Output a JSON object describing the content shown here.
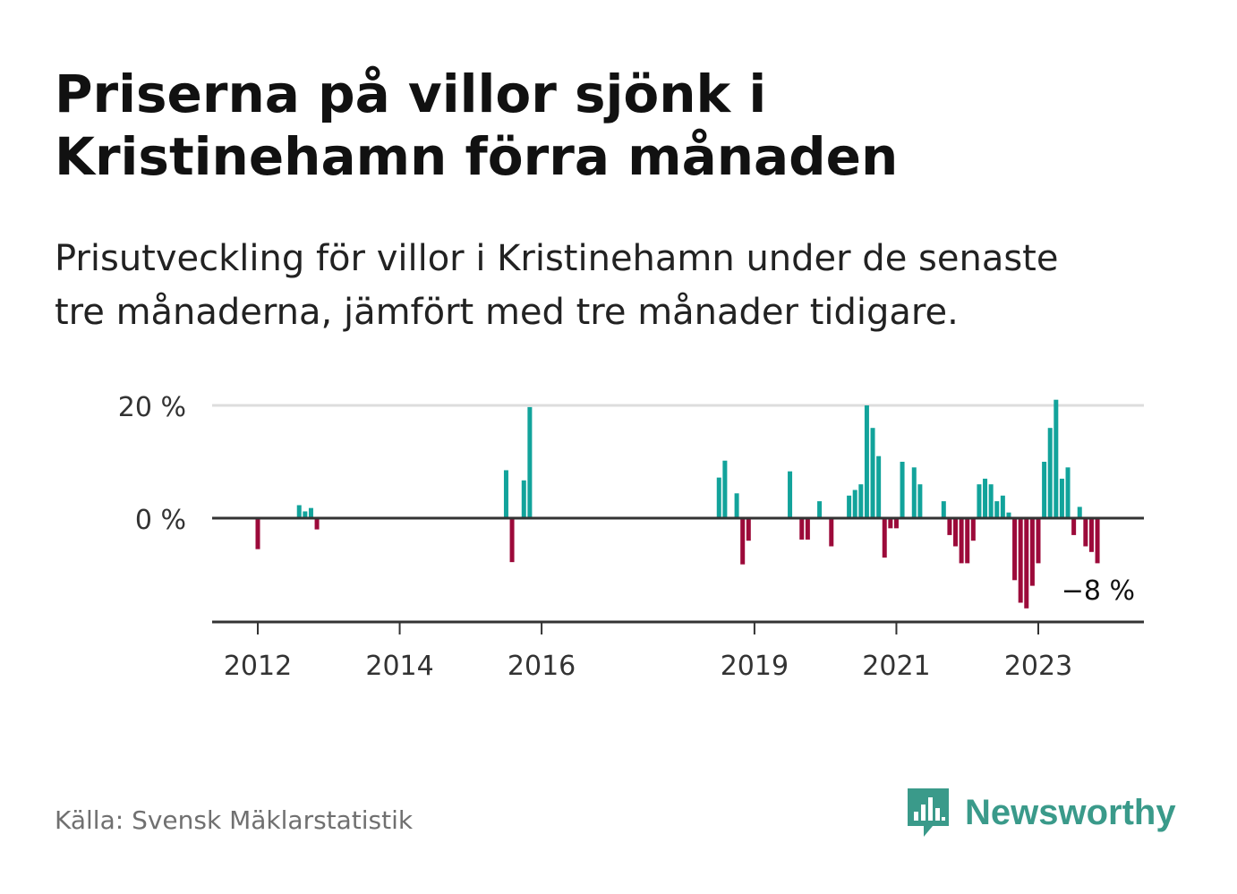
{
  "title_lines": [
    "Priserna på villor sjönk i",
    "Kristinehamn förra månaden"
  ],
  "subtitle_lines": [
    "Prisutveckling för villor i Kristinehamn under de senaste",
    "tre månaderna, jämfört med tre månader tidigare."
  ],
  "source": "Källa: Svensk Mäklarstatistik",
  "brand": {
    "name": "Newsworthy",
    "icon": "bar-chart-speech-bubble-icon",
    "color": "#3a9a8a"
  },
  "colors": {
    "positive": "#12a39b",
    "negative": "#9c0a3a",
    "axis": "#333333",
    "grid": "#dddddd"
  },
  "chart_data": {
    "type": "bar",
    "title": "Priserna på villor sjönk i Kristinehamn förra månaden",
    "ylim": [
      -18,
      21
    ],
    "y_ticks": [
      {
        "value": 0,
        "label": "0 %"
      },
      {
        "value": 20,
        "label": "20 %"
      }
    ],
    "x_ticks": [
      {
        "label": "2012",
        "month_index": 0
      },
      {
        "label": "2014",
        "month_index": 24
      },
      {
        "label": "2016",
        "month_index": 48
      },
      {
        "label": "2019",
        "month_index": 84
      },
      {
        "label": "2021",
        "month_index": 108
      },
      {
        "label": "2023",
        "month_index": 132
      }
    ],
    "x_range_month_index": [
      -7.5,
      150
    ],
    "grid": true,
    "last_value_label": "−8 %",
    "series": [
      {
        "values": [
          [
            0,
            -5.5
          ],
          [
            7,
            2.3
          ],
          [
            8,
            1.2
          ],
          [
            9,
            1.8
          ],
          [
            10,
            -2.0
          ],
          [
            42,
            8.5
          ],
          [
            43,
            -7.8
          ],
          [
            45,
            6.7
          ],
          [
            46,
            19.7
          ],
          [
            78,
            7.2
          ],
          [
            79,
            10.2
          ],
          [
            81,
            4.4
          ],
          [
            82,
            -8.2
          ],
          [
            83,
            -4.0
          ],
          [
            90,
            8.3
          ],
          [
            92,
            -3.8
          ],
          [
            93,
            -3.8
          ],
          [
            95,
            3.0
          ],
          [
            97,
            -5.0
          ],
          [
            100,
            4.0
          ],
          [
            101,
            5.0
          ],
          [
            102,
            6.0
          ],
          [
            103,
            20.0
          ],
          [
            104,
            16.0
          ],
          [
            105,
            11.0
          ],
          [
            106,
            -7.0
          ],
          [
            107,
            -1.8
          ],
          [
            108,
            -1.8
          ],
          [
            109,
            10.0
          ],
          [
            111,
            9.0
          ],
          [
            112,
            6.0
          ],
          [
            116,
            3.0
          ],
          [
            117,
            -3.0
          ],
          [
            118,
            -5.0
          ],
          [
            119,
            -8.0
          ],
          [
            120,
            -8.0
          ],
          [
            121,
            -4.0
          ],
          [
            122,
            6.0
          ],
          [
            123,
            7.0
          ],
          [
            124,
            6.0
          ],
          [
            125,
            3.0
          ],
          [
            126,
            4.0
          ],
          [
            127,
            1.0
          ],
          [
            128,
            -11.0
          ],
          [
            129,
            -15.0
          ],
          [
            130,
            -16.0
          ],
          [
            131,
            -12.0
          ],
          [
            132,
            -8.0
          ],
          [
            133,
            10.0
          ],
          [
            134,
            16.0
          ],
          [
            135,
            21.0
          ],
          [
            136,
            7.0
          ],
          [
            137,
            9.0
          ],
          [
            138,
            -3.0
          ],
          [
            139,
            2.0
          ],
          [
            140,
            -5.0
          ],
          [
            141,
            -6.0
          ],
          [
            142,
            -8.0
          ]
        ]
      }
    ]
  }
}
